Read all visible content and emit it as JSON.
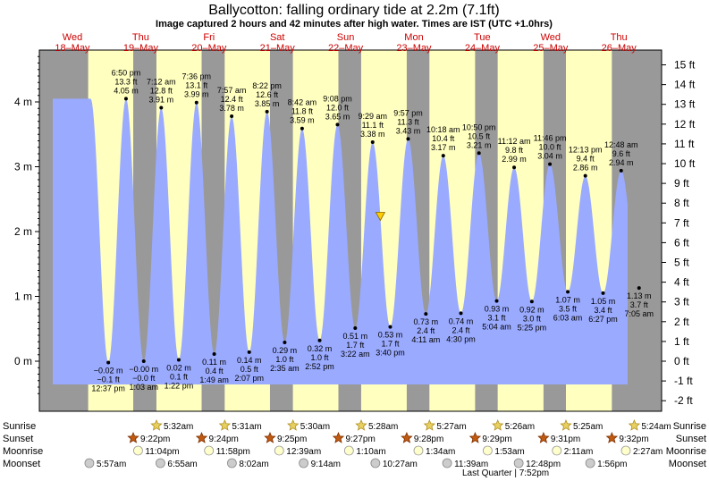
{
  "header": {
    "title": "Ballycotton: falling  ordinary tide at 2.2m (7.1ft)",
    "subtitle": "Image captured 2 hours and 42 minutes after high water. Times are IST (UTC +1.0hrs)"
  },
  "chart_data": {
    "type": "area",
    "colors": {
      "tide": "#9aaaff",
      "night": "#999999",
      "day": "#ffffc0",
      "moon_bg": "#ffffcc",
      "current_marker": "#ffcc00"
    },
    "y_left": {
      "unit": "m",
      "range": [
        -0.6,
        4.8
      ],
      "ticks": [
        {
          "v": 0,
          "label": "0 m"
        },
        {
          "v": 1,
          "label": "1 m"
        },
        {
          "v": 2,
          "label": "2 m"
        },
        {
          "v": 3,
          "label": "3 m"
        },
        {
          "v": 4,
          "label": "4 m"
        }
      ]
    },
    "y_right": {
      "unit": "ft",
      "ticks": [
        "-2 ft",
        "-1 ft",
        "0 ft",
        "1 ft",
        "2 ft",
        "3 ft",
        "4 ft",
        "5 ft",
        "6 ft",
        "7 ft",
        "8 ft",
        "9 ft",
        "10 ft",
        "11 ft",
        "12 ft",
        "13 ft",
        "14 ft",
        "15 ft"
      ]
    },
    "days": [
      {
        "dow": "Wed",
        "date": "18–May"
      },
      {
        "dow": "Thu",
        "date": "19–May"
      },
      {
        "dow": "Fri",
        "date": "20–May"
      },
      {
        "dow": "Sat",
        "date": "21–May"
      },
      {
        "dow": "Sun",
        "date": "22–May"
      },
      {
        "dow": "Mon",
        "date": "23–May"
      },
      {
        "dow": "Tue",
        "date": "24–May"
      },
      {
        "dow": "Wed",
        "date": "25–May"
      },
      {
        "dow": "Thu",
        "date": "26–May"
      }
    ],
    "tides": [
      {
        "type": "low",
        "time": "12:37 pm",
        "m": -0.02,
        "m_label": "−0.02 m",
        "ft_label": "−0.1 ft"
      },
      {
        "type": "high",
        "time": "6:50 pm",
        "m": 4.05,
        "m_label": "4.05 m",
        "ft_label": "13.3 ft"
      },
      {
        "type": "low",
        "time": "1:03 am",
        "m": -0.0,
        "m_label": "−0.00 m",
        "ft_label": "−0.0 ft"
      },
      {
        "type": "high",
        "time": "7:12 am",
        "m": 3.91,
        "m_label": "3.91 m",
        "ft_label": "12.8 ft"
      },
      {
        "type": "low",
        "time": "1:22 pm",
        "m": 0.02,
        "m_label": "0.02 m",
        "ft_label": "0.1 ft"
      },
      {
        "type": "high",
        "time": "7:36 pm",
        "m": 3.99,
        "m_label": "3.99 m",
        "ft_label": "13.1 ft"
      },
      {
        "type": "low",
        "time": "1:49 am",
        "m": 0.11,
        "m_label": "0.11 m",
        "ft_label": "0.4 ft"
      },
      {
        "type": "high",
        "time": "7:57 am",
        "m": 3.78,
        "m_label": "3.78 m",
        "ft_label": "12.4 ft"
      },
      {
        "type": "low",
        "time": "2:07 pm",
        "m": 0.14,
        "m_label": "0.14 m",
        "ft_label": "0.5 ft"
      },
      {
        "type": "high",
        "time": "8:22 pm",
        "m": 3.85,
        "m_label": "3.85 m",
        "ft_label": "12.6 ft"
      },
      {
        "type": "low",
        "time": "2:35 am",
        "m": 0.29,
        "m_label": "0.29 m",
        "ft_label": "1.0 ft"
      },
      {
        "type": "high",
        "time": "8:42 am",
        "m": 3.59,
        "m_label": "3.59 m",
        "ft_label": "11.8 ft"
      },
      {
        "type": "low",
        "time": "2:52 pm",
        "m": 0.32,
        "m_label": "0.32 m",
        "ft_label": "1.0 ft"
      },
      {
        "type": "high",
        "time": "9:08 pm",
        "m": 3.65,
        "m_label": "3.65 m",
        "ft_label": "12.0 ft"
      },
      {
        "type": "low",
        "time": "3:22 am",
        "m": 0.51,
        "m_label": "0.51 m",
        "ft_label": "1.7 ft"
      },
      {
        "type": "high",
        "time": "9:29 am",
        "m": 3.38,
        "m_label": "3.38 m",
        "ft_label": "11.1 ft"
      },
      {
        "type": "low",
        "time": "3:40 pm",
        "m": 0.53,
        "m_label": "0.53 m",
        "ft_label": "1.7 ft"
      },
      {
        "type": "high",
        "time": "9:57 pm",
        "m": 3.43,
        "m_label": "3.43 m",
        "ft_label": "11.3 ft"
      },
      {
        "type": "low",
        "time": "4:11 am",
        "m": 0.73,
        "m_label": "0.73 m",
        "ft_label": "2.4 ft"
      },
      {
        "type": "high",
        "time": "10:18 am",
        "m": 3.17,
        "m_label": "3.17 m",
        "ft_label": "10.4 ft"
      },
      {
        "type": "low",
        "time": "4:30 pm",
        "m": 0.74,
        "m_label": "0.74 m",
        "ft_label": "2.4 ft"
      },
      {
        "type": "high",
        "time": "10:50 pm",
        "m": 3.21,
        "m_label": "3.21 m",
        "ft_label": "10.5 ft"
      },
      {
        "type": "low",
        "time": "5:04 am",
        "m": 0.93,
        "m_label": "0.93 m",
        "ft_label": "3.1 ft"
      },
      {
        "type": "high",
        "time": "11:12 am",
        "m": 2.99,
        "m_label": "2.99 m",
        "ft_label": "9.8 ft"
      },
      {
        "type": "low",
        "time": "5:25 pm",
        "m": 0.92,
        "m_label": "0.92 m",
        "ft_label": "3.0 ft"
      },
      {
        "type": "high",
        "time": "11:46 pm",
        "m": 3.04,
        "m_label": "3.04 m",
        "ft_label": "10.0 ft"
      },
      {
        "type": "low",
        "time": "6:03 am",
        "m": 1.07,
        "m_label": "1.07 m",
        "ft_label": "3.5 ft"
      },
      {
        "type": "high",
        "time": "12:13 pm",
        "m": 2.86,
        "m_label": "2.86 m",
        "ft_label": "9.4 ft"
      },
      {
        "type": "low",
        "time": "6:27 pm",
        "m": 1.05,
        "m_label": "1.05 m",
        "ft_label": "3.4 ft"
      },
      {
        "type": "high",
        "time": "12:48 am",
        "m": 2.94,
        "m_label": "2.94 m",
        "ft_label": "9.6 ft"
      },
      {
        "type": "low",
        "time": "7:05 am",
        "m": 1.13,
        "m_label": "1.13 m",
        "ft_label": "3.7 ft"
      }
    ],
    "current_level_m": 2.2,
    "rows": {
      "sunrise_label": "Sunrise",
      "sunset_label": "Sunset",
      "moonrise_label": "Moonrise",
      "moonset_label": "Moonset",
      "sunrise": [
        "5:32am",
        "5:31am",
        "5:30am",
        "5:28am",
        "5:27am",
        "5:26am",
        "5:25am",
        "5:24am"
      ],
      "sunset": [
        "9:22pm",
        "9:24pm",
        "9:25pm",
        "9:27pm",
        "9:28pm",
        "9:29pm",
        "9:31pm",
        "9:32pm"
      ],
      "moonrise": [
        "11:04pm",
        "11:58pm",
        "12:39am",
        "1:10am",
        "1:34am",
        "1:53am",
        "2:11am",
        "2:27am"
      ],
      "moonset": [
        "5:57am",
        "6:55am",
        "8:02am",
        "9:14am",
        "10:27am",
        "11:39am",
        "12:48pm",
        "1:56pm"
      ],
      "moon_phase": "Last Quarter | 7:52pm"
    }
  }
}
